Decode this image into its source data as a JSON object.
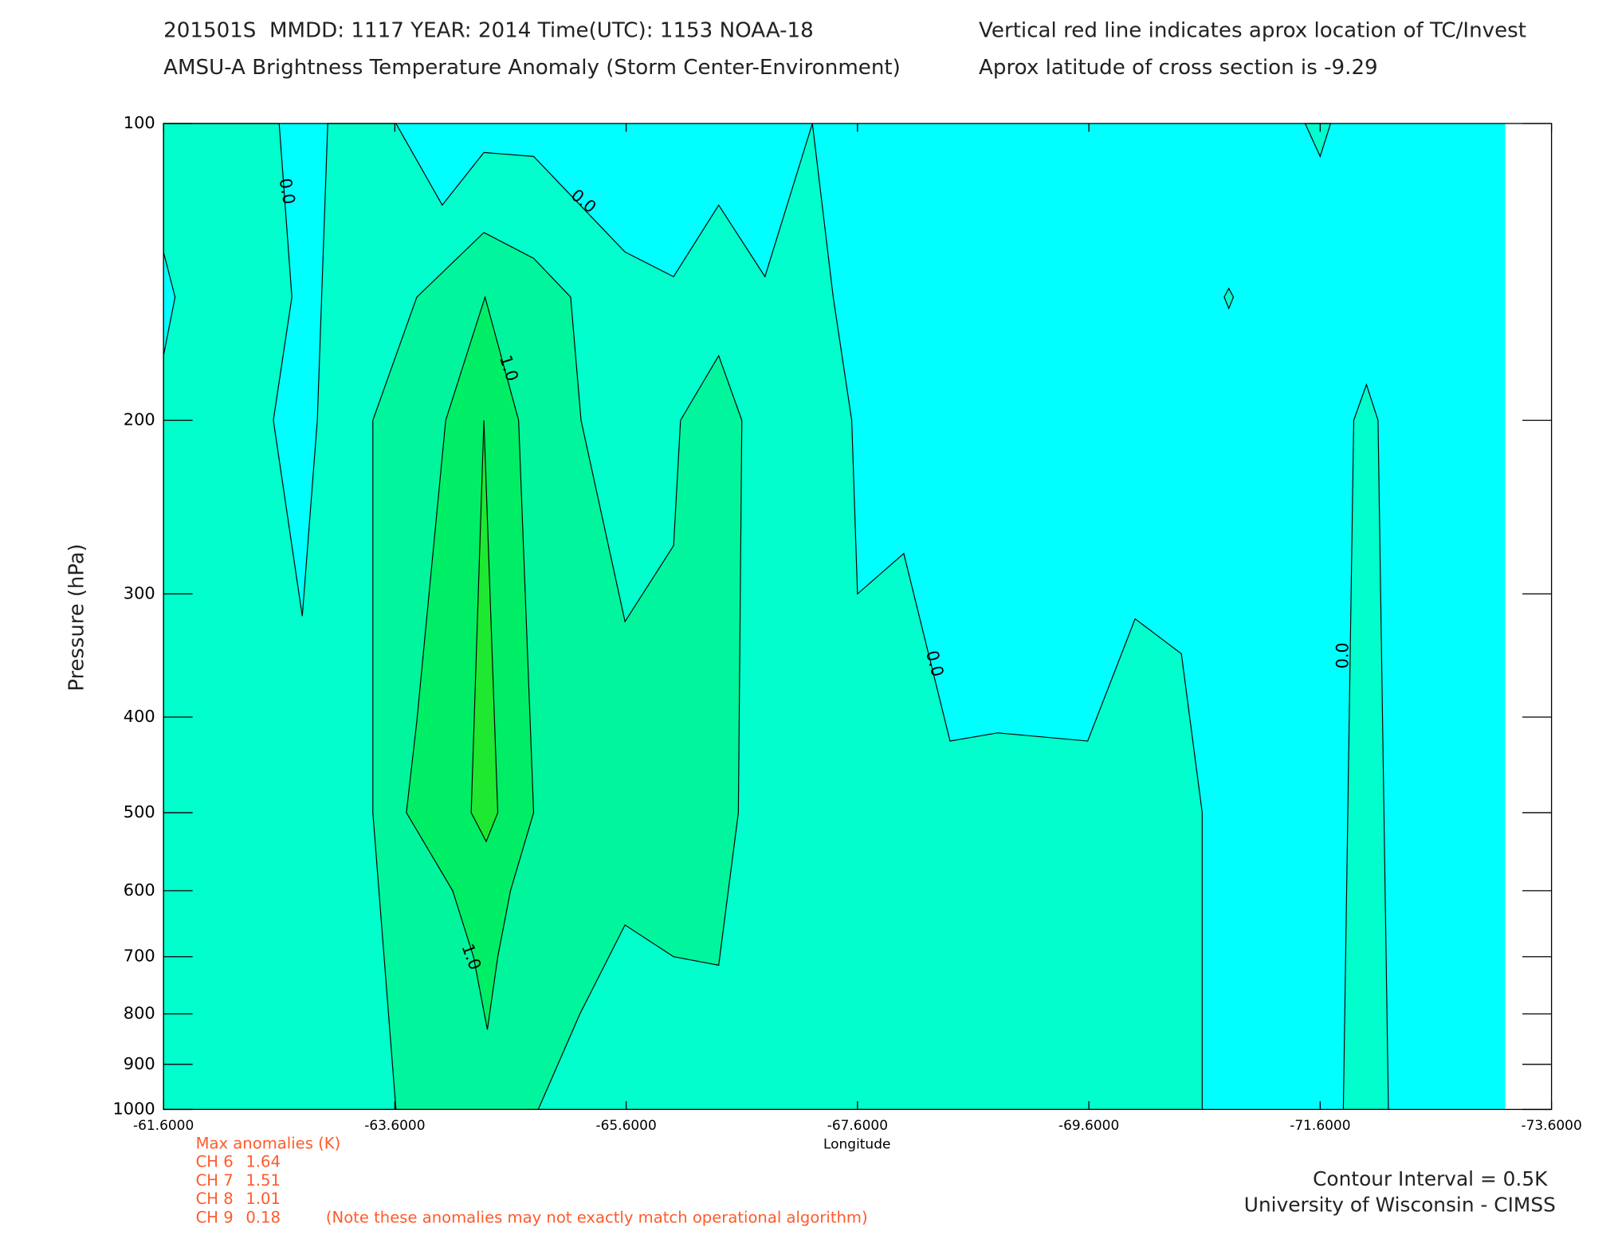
{
  "chart_data": {
    "type": "contour",
    "title": "201501S  MMDD: 1117 YEAR: 2014 Time(UTC): 1153 NOAA-18",
    "subtitle": "AMSU-A Brightness Temperature Anomaly (Storm Center-Environment)",
    "note_right_1": "Vertical red line indicates aprox location of TC/Invest",
    "note_right_2": "Aprox latitude of cross section is -9.29",
    "x_label": "Longitude",
    "y_label": "Pressure (hPa)",
    "xlim": [
      -61.6,
      -73.6
    ],
    "ylim": [
      100,
      1000
    ],
    "y_scale": "log",
    "xticks": [
      {
        "value": -61.6,
        "label": "-61.6000"
      },
      {
        "value": -63.6,
        "label": "-63.6000"
      },
      {
        "value": -65.6,
        "label": "-65.6000"
      },
      {
        "value": -67.6,
        "label": "-67.6000"
      },
      {
        "value": -69.6,
        "label": "-69.6000"
      },
      {
        "value": -71.6,
        "label": "-71.6000"
      },
      {
        "value": -73.6,
        "label": "-73.6000"
      }
    ],
    "yticks": [
      100,
      200,
      300,
      400,
      500,
      600,
      700,
      800,
      900,
      1000
    ],
    "contours": [
      {
        "level": -0.5,
        "color": "#00ffff",
        "polygons": [
          [
            [
              -61.6,
              100
            ],
            [
              -73.2,
              100
            ],
            [
              -73.2,
              1000
            ],
            [
              -61.6,
              1000
            ]
          ]
        ]
      },
      {
        "level": 0,
        "color": "#00ffcc",
        "polygons": [
          [
            [
              -61.6,
              1000
            ],
            [
              -61.6,
              172
            ],
            [
              -61.7,
              150
            ],
            [
              -61.6,
              135
            ],
            [
              -61.6,
              100
            ],
            [
              -62.6,
              100
            ],
            [
              -62.71,
              150
            ],
            [
              -62.55,
              200
            ],
            [
              -62.8,
              316
            ],
            [
              -62.93,
              200
            ],
            [
              -63.02,
              100
            ],
            [
              -63.61,
              100
            ],
            [
              -64.01,
              121
            ],
            [
              -64.37,
              107
            ],
            [
              -64.8,
              108
            ],
            [
              -65.59,
              135
            ],
            [
              -66.01,
              143
            ],
            [
              -66.4,
              121
            ],
            [
              -66.8,
              143
            ],
            [
              -67.21,
              100
            ],
            [
              -67.39,
              150
            ],
            [
              -67.55,
              200
            ],
            [
              -67.6,
              300
            ],
            [
              -68.0,
              273
            ],
            [
              -68.4,
              423
            ],
            [
              -68.81,
              415
            ],
            [
              -69.59,
              423
            ],
            [
              -70.0,
              318
            ],
            [
              -70.4,
              345
            ],
            [
              -70.58,
              500
            ],
            [
              -70.58,
              1000
            ]
          ],
          [
            [
              -71.8,
              1000
            ],
            [
              -71.89,
              200
            ],
            [
              -72.0,
              184
            ],
            [
              -72.1,
              200
            ],
            [
              -72.19,
              1000
            ]
          ],
          [
            [
              -71.47,
              100
            ],
            [
              -71.6,
              108
            ],
            [
              -71.69,
              100
            ]
          ],
          [
            [
              -70.77,
              150
            ],
            [
              -70.81,
              147
            ],
            [
              -70.85,
              150
            ],
            [
              -70.81,
              154
            ]
          ]
        ]
      },
      {
        "level": 0.5,
        "color": "#00f59c",
        "polygons": [
          [
            [
              -63.61,
              1000
            ],
            [
              -63.59,
              934
            ],
            [
              -63.41,
              500
            ],
            [
              -63.41,
              200
            ],
            [
              -63.79,
              150
            ],
            [
              -64.37,
              129
            ],
            [
              -64.8,
              137
            ],
            [
              -65.12,
              150
            ],
            [
              -65.21,
              200
            ],
            [
              -65.59,
              320
            ],
            [
              -66.01,
              268
            ],
            [
              -66.07,
              200
            ],
            [
              -66.4,
              172
            ],
            [
              -66.6,
              200
            ],
            [
              -66.57,
              500
            ],
            [
              -66.4,
              714
            ],
            [
              -66.01,
              700
            ],
            [
              -65.59,
              650
            ],
            [
              -65.2,
              800
            ],
            [
              -64.84,
              1000
            ]
          ]
        ]
      },
      {
        "level": 1,
        "color": "#00ee66",
        "polygons": [
          [
            [
              -64.4,
              830
            ],
            [
              -64.28,
              700
            ],
            [
              -64.1,
              600
            ],
            [
              -63.7,
              500
            ],
            [
              -63.79,
              404
            ],
            [
              -64.04,
              200
            ],
            [
              -64.38,
              150
            ],
            [
              -64.67,
              200
            ],
            [
              -64.8,
              500
            ],
            [
              -64.6,
              600
            ],
            [
              -64.49,
              700
            ]
          ]
        ]
      },
      {
        "level": 1.5,
        "color": "#1ee830",
        "polygons": [
          [
            [
              -64.26,
              500
            ],
            [
              -64.37,
              200
            ],
            [
              -64.49,
              500
            ],
            [
              -64.39,
              535
            ]
          ]
        ]
      }
    ],
    "contour_labels": [
      "0.0",
      "0.0",
      "1.0",
      "0.0",
      "1.0",
      "0.0"
    ],
    "anomalies_title": "Max anomalies (K)",
    "anomalies": [
      {
        "channel": "CH 6",
        "value": 1.64
      },
      {
        "channel": "CH 7",
        "value": 1.51
      },
      {
        "channel": "CH 8",
        "value": 1.01
      },
      {
        "channel": "CH 9",
        "value": 0.18
      }
    ],
    "anomalies_note": "(Note these anomalies may not exactly match operational algorithm)",
    "contour_interval": "Contour Interval = 0.5K",
    "credit": "University of Wisconsin - CIMSS"
  }
}
